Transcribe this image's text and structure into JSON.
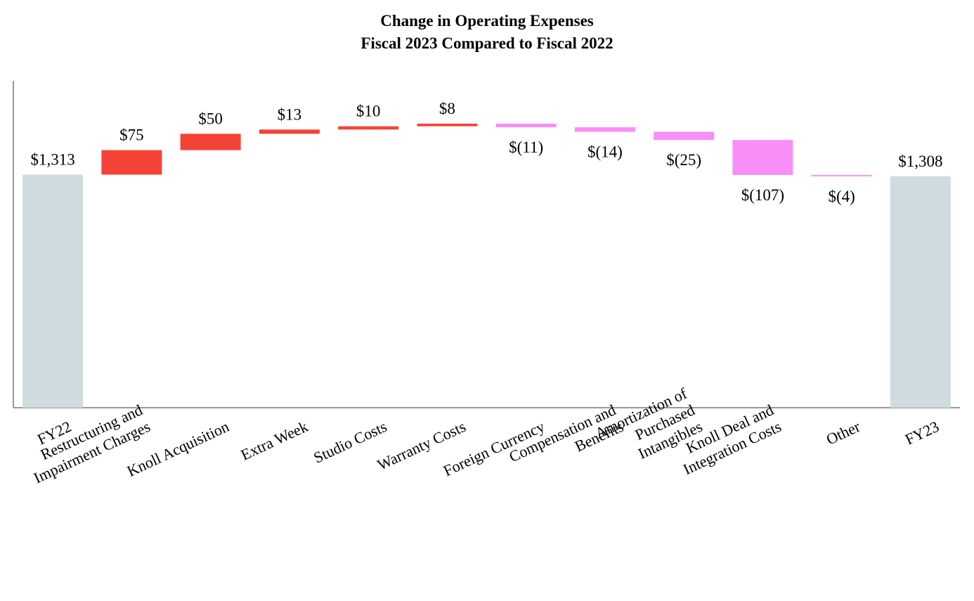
{
  "chart_data": {
    "type": "waterfall",
    "title": "Change in Operating Expenses",
    "subtitle": "Fiscal 2023 Compared to Fiscal 2022",
    "categories": [
      "FY22",
      "Restructuring and Impairment Charges",
      "Knoll Acquisition",
      "Extra Week",
      "Studio Costs",
      "Warranty Costs",
      "Foreign Currency",
      "Compensation and Benefits",
      "Amortization of Purchased Intangibles",
      "Knoll Deal and Integration Costs",
      "Other",
      "FY23"
    ],
    "values": [
      1313,
      75,
      50,
      13,
      10,
      8,
      -11,
      -14,
      -25,
      -107,
      -4,
      1308
    ],
    "value_labels": [
      "$1,313",
      "$75",
      "$50",
      "$13",
      "$10",
      "$8",
      "$(11)",
      "$(14)",
      "$(25)",
      "$(107)",
      "$(4)",
      "$1,308"
    ],
    "measure": [
      "absolute",
      "relative",
      "relative",
      "relative",
      "relative",
      "relative",
      "relative",
      "relative",
      "relative",
      "relative",
      "relative",
      "absolute"
    ],
    "colors": {
      "total": "#d0dbdf",
      "increase": "#f44336",
      "decrease": "#f78ff7"
    },
    "ylim": [
      600,
      1600
    ]
  }
}
